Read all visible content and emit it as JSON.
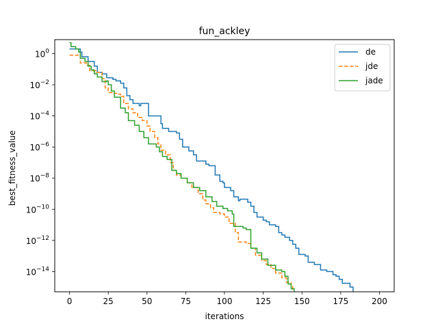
{
  "chart_data": {
    "type": "line",
    "title": "fun_ackley",
    "xlabel": "iterations",
    "ylabel": "best_fitness_value",
    "xlim": [
      -9.5,
      209.5
    ],
    "ylog_lim": [
      -15.3,
      0.9
    ],
    "y_scale": "log",
    "grid": false,
    "legend_position": "top-right",
    "x_ticks": [
      0,
      25,
      50,
      75,
      100,
      125,
      150,
      175,
      200
    ],
    "x_tick_labels": [
      "0",
      "25",
      "50",
      "75",
      "100",
      "125",
      "150",
      "175",
      "200"
    ],
    "y_ticks": [
      0,
      -2,
      -4,
      -6,
      -8,
      -10,
      -12,
      -14
    ],
    "y_tick_labels": [
      {
        "base": "10",
        "exp": "0"
      },
      {
        "base": "10",
        "exp": "−2"
      },
      {
        "base": "10",
        "exp": "−4"
      },
      {
        "base": "10",
        "exp": "−6"
      },
      {
        "base": "10",
        "exp": "−8"
      },
      {
        "base": "10",
        "exp": "−10"
      },
      {
        "base": "10",
        "exp": "−12"
      },
      {
        "base": "10",
        "exp": "−14"
      }
    ],
    "series": [
      {
        "name": "de",
        "color": "#1f77b4",
        "dash": "solid",
        "log10_points": [
          [
            0,
            0.3
          ],
          [
            6,
            0.3
          ],
          [
            7,
            0.1
          ],
          [
            8,
            -0.2
          ],
          [
            12,
            -0.5
          ],
          [
            16,
            -0.8
          ],
          [
            18,
            -1.2
          ],
          [
            21,
            -1.3
          ],
          [
            24,
            -1.55
          ],
          [
            28,
            -1.65
          ],
          [
            30,
            -1.75
          ],
          [
            33,
            -1.9
          ],
          [
            35,
            -2.2
          ],
          [
            37,
            -2.7
          ],
          [
            39,
            -2.95
          ],
          [
            41,
            -3.2
          ],
          [
            45,
            -3.35
          ],
          [
            46,
            -3.2
          ],
          [
            51,
            -4
          ],
          [
            59,
            -4.5
          ],
          [
            60,
            -4.8
          ],
          [
            64,
            -5.0
          ],
          [
            69,
            -5.1
          ],
          [
            71,
            -5.5
          ],
          [
            73,
            -6.0
          ],
          [
            77,
            -6.25
          ],
          [
            80,
            -6.5
          ],
          [
            82,
            -6.9
          ],
          [
            88,
            -7.1
          ],
          [
            90,
            -7.2
          ],
          [
            94,
            -7.8
          ],
          [
            97,
            -8.2
          ],
          [
            99,
            -8.3
          ],
          [
            100,
            -8.6
          ],
          [
            104,
            -8.8
          ],
          [
            106,
            -9.2
          ],
          [
            109,
            -9.45
          ],
          [
            110,
            -9.35
          ],
          [
            115,
            -9.55
          ],
          [
            117,
            -9.8
          ],
          [
            119,
            -10.2
          ],
          [
            121,
            -10.5
          ],
          [
            125,
            -10.7
          ],
          [
            127,
            -10.8
          ],
          [
            129,
            -11.0
          ],
          [
            133,
            -11.1
          ],
          [
            135,
            -11.5
          ],
          [
            137,
            -11.65
          ],
          [
            139,
            -11.8
          ],
          [
            142,
            -12.0
          ],
          [
            144,
            -12.25
          ],
          [
            146,
            -12.5
          ],
          [
            148,
            -12.9
          ],
          [
            152,
            -13.0
          ],
          [
            154,
            -13.4
          ],
          [
            158,
            -13.55
          ],
          [
            162,
            -13.9
          ],
          [
            166,
            -14.0
          ],
          [
            170,
            -14.2
          ],
          [
            172,
            -14.3
          ],
          [
            174,
            -14.5
          ],
          [
            176,
            -14.75
          ],
          [
            181,
            -15.0
          ],
          [
            183,
            -15.3
          ]
        ]
      },
      {
        "name": "jde",
        "color": "#ff7f0e",
        "dash": "dashed",
        "log10_points": [
          [
            0,
            -0.1
          ],
          [
            6,
            -0.1
          ],
          [
            7,
            -0.6
          ],
          [
            11,
            -0.75
          ],
          [
            13,
            -1.1
          ],
          [
            17,
            -1.2
          ],
          [
            21,
            -1.6
          ],
          [
            23,
            -2.2
          ],
          [
            25,
            -2.5
          ],
          [
            28,
            -2.55
          ],
          [
            31,
            -2.6
          ],
          [
            33,
            -2.75
          ],
          [
            35,
            -3.2
          ],
          [
            38,
            -3.55
          ],
          [
            41,
            -3.8
          ],
          [
            44,
            -4.1
          ],
          [
            47,
            -4.3
          ],
          [
            50,
            -4.65
          ],
          [
            52,
            -5.0
          ],
          [
            55,
            -5.4
          ],
          [
            57,
            -5.8
          ],
          [
            59,
            -6.2
          ],
          [
            62,
            -6.5
          ],
          [
            65,
            -7.0
          ],
          [
            67,
            -7.5
          ],
          [
            69,
            -7.8
          ],
          [
            72,
            -8.0
          ],
          [
            76,
            -8.3
          ],
          [
            79,
            -8.6
          ],
          [
            83,
            -9.0
          ],
          [
            86,
            -9.4
          ],
          [
            88,
            -9.65
          ],
          [
            91,
            -9.9
          ],
          [
            93,
            -10.2
          ],
          [
            97,
            -10.3
          ],
          [
            100,
            -10.5
          ],
          [
            103,
            -10.9
          ],
          [
            107,
            -11.5
          ],
          [
            109,
            -12.1
          ],
          [
            114,
            -12.2
          ],
          [
            117,
            -12.5
          ],
          [
            120,
            -12.95
          ],
          [
            124,
            -13.3
          ],
          [
            127,
            -13.55
          ],
          [
            130,
            -13.8
          ],
          [
            133,
            -14.1
          ],
          [
            137,
            -14.4
          ],
          [
            140,
            -14.7
          ],
          [
            143,
            -14.9
          ],
          [
            144,
            -15.3
          ]
        ]
      },
      {
        "name": "jade",
        "color": "#2ca02c",
        "dash": "solid",
        "log10_points": [
          [
            0,
            0.7
          ],
          [
            1,
            0.45
          ],
          [
            4,
            0.3
          ],
          [
            6,
            0.1
          ],
          [
            7,
            -0.3
          ],
          [
            10,
            -0.5
          ],
          [
            12,
            -0.8
          ],
          [
            14,
            -1.05
          ],
          [
            16,
            -1.3
          ],
          [
            18,
            -1.5
          ],
          [
            21,
            -1.8
          ],
          [
            24,
            -1.75
          ],
          [
            25,
            -2.0
          ],
          [
            27,
            -2.4
          ],
          [
            29,
            -2.8
          ],
          [
            33,
            -3.5
          ],
          [
            36,
            -3.8
          ],
          [
            38,
            -4.3
          ],
          [
            42,
            -4.6
          ],
          [
            45,
            -5.0
          ],
          [
            48,
            -5.4
          ],
          [
            51,
            -5.8
          ],
          [
            56,
            -6.0
          ],
          [
            58,
            -6.3
          ],
          [
            60,
            -6.6
          ],
          [
            63,
            -6.8
          ],
          [
            66,
            -7.5
          ],
          [
            69,
            -7.7
          ],
          [
            72,
            -8.0
          ],
          [
            76,
            -8.3
          ],
          [
            80,
            -8.6
          ],
          [
            84,
            -8.8
          ],
          [
            88,
            -9.2
          ],
          [
            92,
            -9.5
          ],
          [
            95,
            -9.8
          ],
          [
            99,
            -9.95
          ],
          [
            102,
            -10.1
          ],
          [
            105,
            -10.3
          ],
          [
            106,
            -11.1
          ],
          [
            112,
            -11.2
          ],
          [
            114,
            -11.3
          ],
          [
            117,
            -12.5
          ],
          [
            121,
            -12.8
          ],
          [
            124,
            -13.2
          ],
          [
            128,
            -13.6
          ],
          [
            133,
            -13.9
          ],
          [
            137,
            -14.0
          ],
          [
            139,
            -14.3
          ],
          [
            141,
            -14.8
          ],
          [
            143,
            -15.1
          ],
          [
            145,
            -15.3
          ]
        ]
      }
    ]
  }
}
